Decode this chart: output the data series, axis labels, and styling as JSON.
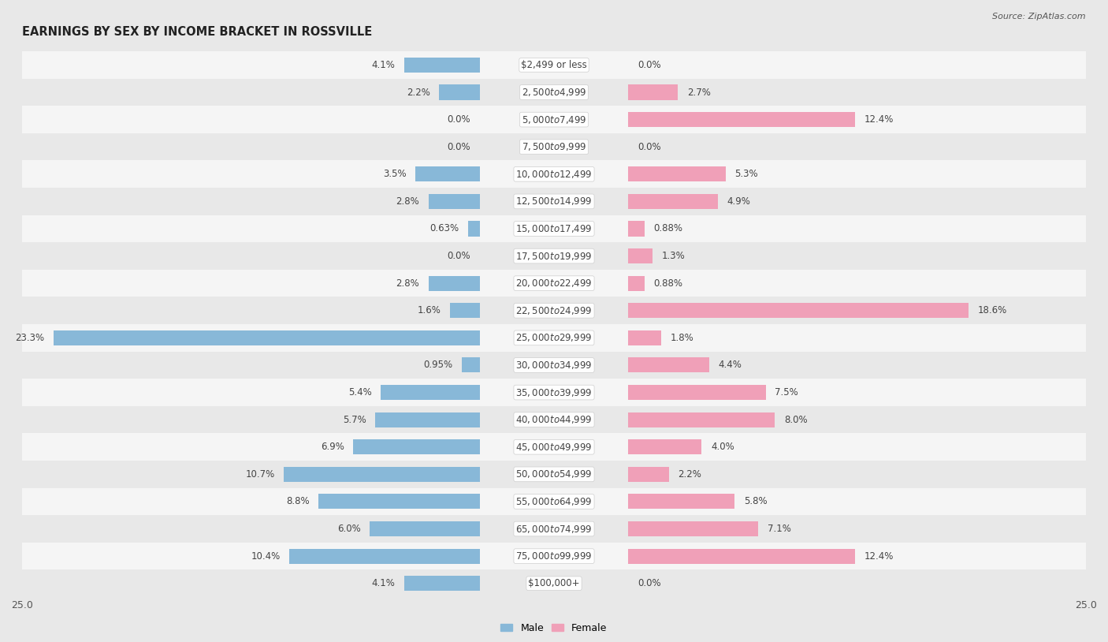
{
  "title": "EARNINGS BY SEX BY INCOME BRACKET IN ROSSVILLE",
  "source": "Source: ZipAtlas.com",
  "categories": [
    "$2,499 or less",
    "$2,500 to $4,999",
    "$5,000 to $7,499",
    "$7,500 to $9,999",
    "$10,000 to $12,499",
    "$12,500 to $14,999",
    "$15,000 to $17,499",
    "$17,500 to $19,999",
    "$20,000 to $22,499",
    "$22,500 to $24,999",
    "$25,000 to $29,999",
    "$30,000 to $34,999",
    "$35,000 to $39,999",
    "$40,000 to $44,999",
    "$45,000 to $49,999",
    "$50,000 to $54,999",
    "$55,000 to $64,999",
    "$65,000 to $74,999",
    "$75,000 to $99,999",
    "$100,000+"
  ],
  "male_values": [
    4.1,
    2.2,
    0.0,
    0.0,
    3.5,
    2.8,
    0.63,
    0.0,
    2.8,
    1.6,
    23.3,
    0.95,
    5.4,
    5.7,
    6.9,
    10.7,
    8.8,
    6.0,
    10.4,
    4.1
  ],
  "female_values": [
    0.0,
    2.7,
    12.4,
    0.0,
    5.3,
    4.9,
    0.88,
    1.3,
    0.88,
    18.6,
    1.8,
    4.4,
    7.5,
    8.0,
    4.0,
    2.2,
    5.8,
    7.1,
    12.4,
    0.0
  ],
  "male_color": "#88b8d8",
  "female_color": "#f0a0b8",
  "row_colors": [
    "#f5f5f5",
    "#e8e8e8"
  ],
  "xlim": 25.0,
  "bar_height": 0.55,
  "label_fontsize": 8.5,
  "category_fontsize": 8.5,
  "title_fontsize": 10.5,
  "source_fontsize": 8,
  "tick_fontsize": 9,
  "bg_color": "#e8e8e8"
}
